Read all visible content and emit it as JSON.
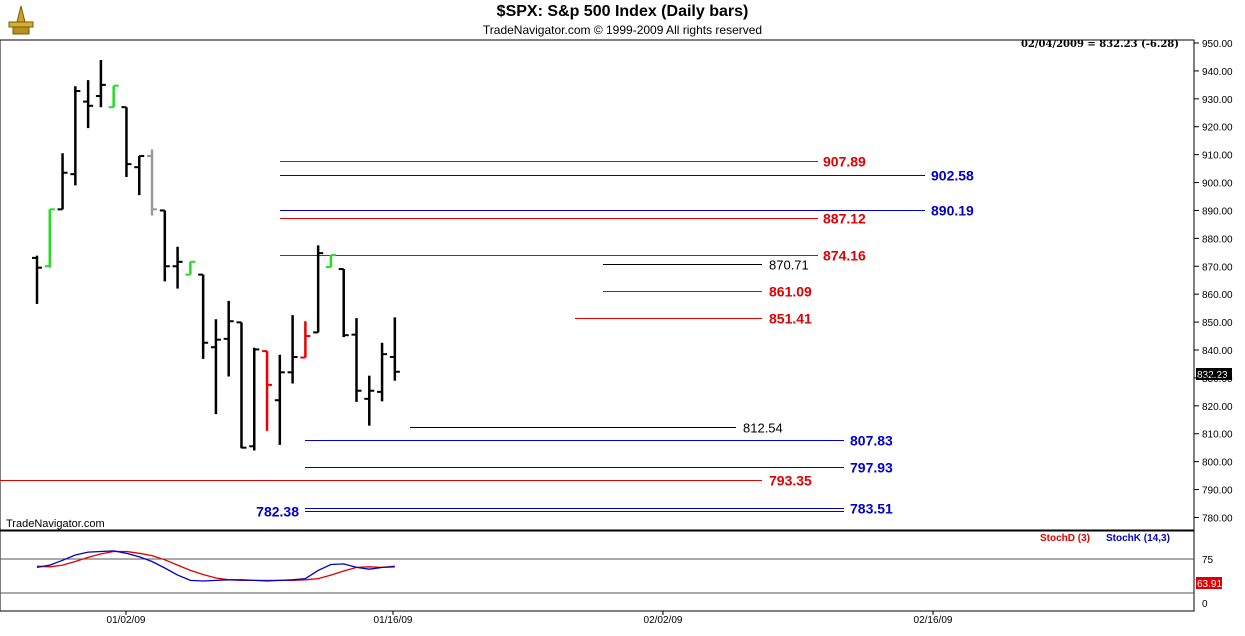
{
  "header": {
    "title": "$SPX:  S&p 500 Index  (Daily bars)",
    "subtitle": "TradeNavigator.com © 1999-2009 All rights reserved",
    "quote": "02/04/2009 = 832.23 (-6.28)",
    "watermark": "TradeNavigator.com"
  },
  "colors": {
    "up": "#000000",
    "green": "#22dd22",
    "red": "#ee0000",
    "gray": "#999999",
    "level_red": "#e00000",
    "level_blue": "#0000cc",
    "level_black": "#000000"
  },
  "chart_data": [
    {
      "type": "ohlc",
      "title": "$SPX:  S&p 500 Index  (Daily bars)",
      "y_ticks": [
        "950.00",
        "940.00",
        "930.00",
        "920.00",
        "910.00",
        "900.00",
        "890.00",
        "880.00",
        "870.00",
        "860.00",
        "850.00",
        "840.00",
        "830.00",
        "820.00",
        "810.00",
        "800.00",
        "790.00",
        "780.00"
      ],
      "ylim": [
        775.5,
        950
      ],
      "x_ticks": [
        "01/02/09",
        "01/16/09",
        "02/02/09",
        "02/16/09"
      ],
      "last_price_label": "832.23",
      "bars": [
        {
          "h": 873.8,
          "l": 856.5,
          "o": 873.0,
          "c": 869.5,
          "color": "black"
        },
        {
          "h": 890.4,
          "l": 869.5,
          "o": 870.0,
          "c": 890.4,
          "color": "green"
        },
        {
          "h": 910.5,
          "l": 890.4,
          "o": 890.4,
          "c": 903.5,
          "color": "black"
        },
        {
          "h": 934.5,
          "l": 899.0,
          "o": 903.0,
          "c": 932.8,
          "color": "black"
        },
        {
          "h": 936.7,
          "l": 919.5,
          "o": 929.0,
          "c": 927.5,
          "color": "black"
        },
        {
          "h": 943.9,
          "l": 927.0,
          "o": 931.0,
          "c": 935.0,
          "color": "black"
        },
        {
          "h": 934.7,
          "l": 927.0,
          "o": 927.0,
          "c": 934.7,
          "color": "green"
        },
        {
          "h": 927.0,
          "l": 902.0,
          "o": 927.0,
          "c": 906.6,
          "color": "black"
        },
        {
          "h": 909.5,
          "l": 895.5,
          "o": 905.5,
          "c": 909.5,
          "color": "black"
        },
        {
          "h": 911.9,
          "l": 888.2,
          "o": 909.5,
          "c": 890.4,
          "color": "gray"
        },
        {
          "h": 890.0,
          "l": 864.6,
          "o": 890.0,
          "c": 870.0,
          "color": "black"
        },
        {
          "h": 877.0,
          "l": 862.0,
          "o": 870.0,
          "c": 871.6,
          "color": "black"
        },
        {
          "h": 871.6,
          "l": 867.0,
          "o": 867.0,
          "c": 871.6,
          "color": "green"
        },
        {
          "h": 867.0,
          "l": 836.8,
          "o": 867.0,
          "c": 842.6,
          "color": "black"
        },
        {
          "h": 851.0,
          "l": 817.0,
          "o": 841.0,
          "c": 843.7,
          "color": "black"
        },
        {
          "h": 857.6,
          "l": 830.5,
          "o": 844.0,
          "c": 850.3,
          "color": "black"
        },
        {
          "h": 849.9,
          "l": 804.8,
          "o": 849.9,
          "c": 805.0,
          "color": "black"
        },
        {
          "h": 840.8,
          "l": 804.0,
          "o": 805.5,
          "c": 840.2,
          "color": "black"
        },
        {
          "h": 839.6,
          "l": 811.0,
          "o": 839.6,
          "c": 827.5,
          "color": "red"
        },
        {
          "h": 838.3,
          "l": 806.0,
          "o": 822.0,
          "c": 832.0,
          "color": "black"
        },
        {
          "h": 852.5,
          "l": 828.0,
          "o": 832.0,
          "c": 837.5,
          "color": "black"
        },
        {
          "h": 850.3,
          "l": 837.3,
          "o": 837.3,
          "c": 845.0,
          "color": "red"
        },
        {
          "h": 877.5,
          "l": 846.3,
          "o": 846.3,
          "c": 874.7,
          "color": "black"
        },
        {
          "h": 874.0,
          "l": 869.7,
          "o": 869.7,
          "c": 874.0,
          "color": "green"
        },
        {
          "h": 869.0,
          "l": 844.6,
          "o": 869.0,
          "c": 845.3,
          "color": "black"
        },
        {
          "h": 851.4,
          "l": 821.4,
          "o": 845.5,
          "c": 825.4,
          "color": "black"
        },
        {
          "h": 830.8,
          "l": 812.9,
          "o": 822.5,
          "c": 825.4,
          "color": "black"
        },
        {
          "h": 842.6,
          "l": 821.6,
          "o": 825.0,
          "c": 838.5,
          "color": "black"
        },
        {
          "h": 851.7,
          "l": 829.0,
          "o": 837.5,
          "c": 832.2,
          "color": "black"
        }
      ],
      "levels": [
        {
          "value": 907.89,
          "label": "907.89",
          "color": "red"
        },
        {
          "value": 902.58,
          "label": "902.58",
          "color": "blue"
        },
        {
          "value": 890.19,
          "label": "890.19",
          "color": "blue"
        },
        {
          "value": 887.12,
          "label": "887.12",
          "color": "red"
        },
        {
          "value": 874.16,
          "label": "874.16",
          "color": "red"
        },
        {
          "value": 870.71,
          "label": "870.71",
          "color": "black"
        },
        {
          "value": 861.09,
          "label": "861.09",
          "color": "red"
        },
        {
          "value": 851.41,
          "label": "851.41",
          "color": "red"
        },
        {
          "value": 812.54,
          "label": "812.54",
          "color": "black"
        },
        {
          "value": 807.83,
          "label": "807.83",
          "color": "blue"
        },
        {
          "value": 797.93,
          "label": "797.93",
          "color": "blue"
        },
        {
          "value": 793.35,
          "label": "793.35",
          "color": "red"
        },
        {
          "value": 783.51,
          "label": "783.51",
          "color": "blue"
        },
        {
          "value": 782.38,
          "label": "782.38",
          "color": "blue"
        }
      ]
    },
    {
      "type": "line",
      "title": "",
      "legend": [
        "StochD (3)",
        "StochK (14,3)"
      ],
      "y_ticks": [
        "75",
        "0"
      ],
      "ylim": [
        0,
        100
      ],
      "last_value_label": "63.91",
      "series": [
        {
          "name": "StochD (3)",
          "color": "red",
          "values": [
            64,
            63,
            66,
            72,
            79,
            85,
            89,
            89,
            86,
            82,
            75,
            66,
            57,
            50,
            44,
            41,
            40,
            40,
            40,
            40,
            40,
            41,
            43,
            49,
            56,
            62,
            63,
            62,
            64
          ]
        },
        {
          "name": "StochK (14,3)",
          "color": "blue",
          "values": [
            62,
            66,
            74,
            83,
            88,
            89,
            90,
            86,
            80,
            72,
            61,
            49,
            40,
            39,
            40,
            41,
            41,
            40,
            39,
            40,
            41,
            43,
            57,
            67,
            68,
            62,
            59,
            62,
            63
          ]
        }
      ]
    }
  ]
}
